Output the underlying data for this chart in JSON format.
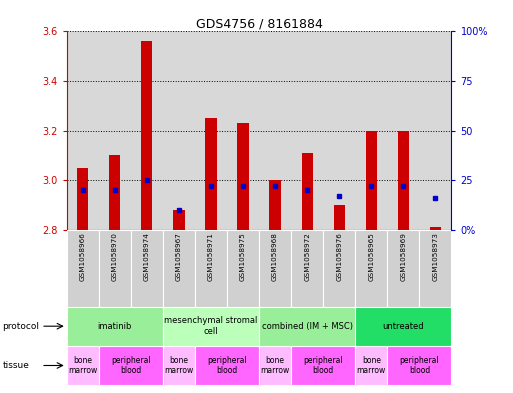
{
  "title": "GDS4756 / 8161884",
  "samples": [
    "GSM1058966",
    "GSM1058970",
    "GSM1058974",
    "GSM1058967",
    "GSM1058971",
    "GSM1058975",
    "GSM1058968",
    "GSM1058972",
    "GSM1058976",
    "GSM1058965",
    "GSM1058969",
    "GSM1058973"
  ],
  "red_values": [
    3.05,
    3.1,
    3.56,
    2.88,
    3.25,
    3.23,
    3.0,
    3.11,
    2.9,
    3.2,
    3.2,
    2.81
  ],
  "blue_values_pct": [
    20,
    20,
    25,
    10,
    22,
    22,
    22,
    20,
    17,
    22,
    22,
    16
  ],
  "ymin": 2.8,
  "ymax": 3.6,
  "yticks": [
    2.8,
    3.0,
    3.2,
    3.4,
    3.6
  ],
  "y2ticks": [
    0,
    25,
    50,
    75,
    100
  ],
  "y2labels": [
    "0%",
    "25",
    "50",
    "75",
    "100%"
  ],
  "left_axis_color": "#cc0000",
  "right_axis_color": "#0000cc",
  "bar_width": 0.35,
  "protocols": [
    {
      "label": "imatinib",
      "start": 0,
      "end": 3,
      "color": "#99ee99"
    },
    {
      "label": "mesenchymal stromal\ncell",
      "start": 3,
      "end": 6,
      "color": "#bbffbb"
    },
    {
      "label": "combined (IM + MSC)",
      "start": 6,
      "end": 9,
      "color": "#99ee99"
    },
    {
      "label": "untreated",
      "start": 9,
      "end": 12,
      "color": "#22dd66"
    }
  ],
  "tissues": [
    {
      "label": "bone\nmarrow",
      "start": 0,
      "end": 1,
      "color": "#ffbbff"
    },
    {
      "label": "peripheral\nblood",
      "start": 1,
      "end": 3,
      "color": "#ff66ff"
    },
    {
      "label": "bone\nmarrow",
      "start": 3,
      "end": 4,
      "color": "#ffbbff"
    },
    {
      "label": "peripheral\nblood",
      "start": 4,
      "end": 6,
      "color": "#ff66ff"
    },
    {
      "label": "bone\nmarrow",
      "start": 6,
      "end": 7,
      "color": "#ffbbff"
    },
    {
      "label": "peripheral\nblood",
      "start": 7,
      "end": 9,
      "color": "#ff66ff"
    },
    {
      "label": "bone\nmarrow",
      "start": 9,
      "end": 10,
      "color": "#ffbbff"
    },
    {
      "label": "peripheral\nblood",
      "start": 10,
      "end": 12,
      "color": "#ff66ff"
    }
  ]
}
